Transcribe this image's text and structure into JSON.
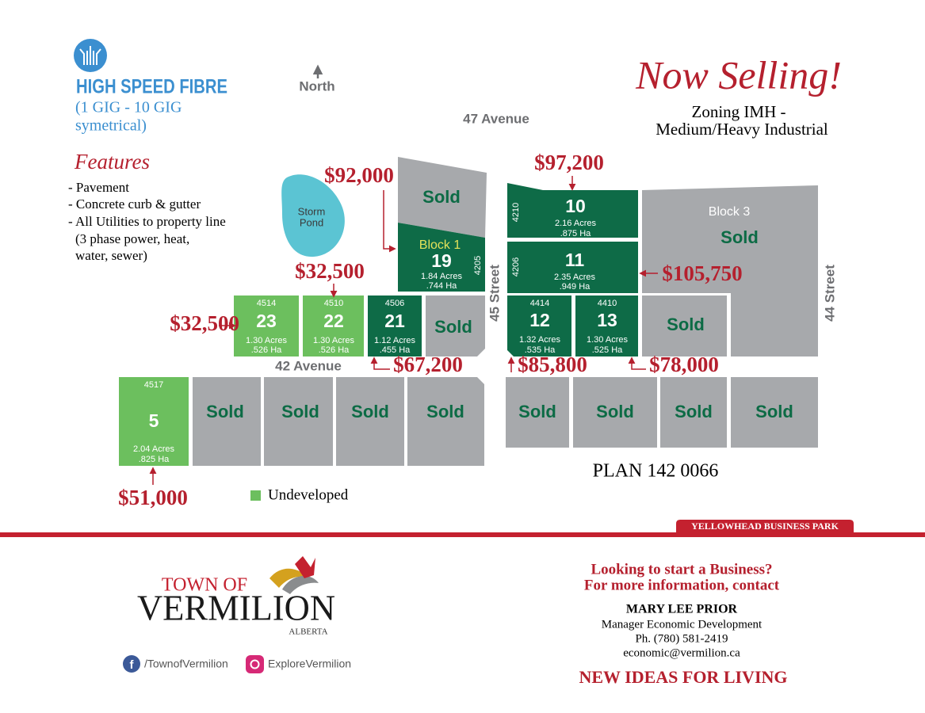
{
  "header": {
    "fibre_title": "HIGH SPEED FIBRE",
    "fibre_lines": [
      "(1 GIG - 10 GIG",
      "symetrical)"
    ],
    "features_title": "Features",
    "features": [
      "- Pavement",
      "- Concrete curb & gutter",
      "- All Utilities to property line",
      "(3 phase power, heat,",
      "water, sewer)"
    ],
    "north": "North",
    "now_selling": "Now Selling!",
    "zoning": [
      "Zoning IMH -",
      "Medium/Heavy Industrial"
    ]
  },
  "map": {
    "streets": [
      "47 Avenue",
      "42 Avenue",
      "45 Street",
      "44 Street"
    ],
    "storm_pond": [
      "Storm",
      "Pond"
    ],
    "block_labels": [
      "Block 1",
      "Block 3"
    ],
    "lots": [
      {
        "number": "23",
        "address": "4514",
        "acres": "1.30 Acres",
        "hectares": ".526 Ha",
        "price": "$32,500",
        "undeveloped": true
      },
      {
        "number": "22",
        "address": "4510",
        "acres": "1.30 Acres",
        "hectares": ".526 Ha",
        "price": "$32,500",
        "undeveloped": true
      },
      {
        "number": "21",
        "address": "4506",
        "acres": "1.12 Acres",
        "hectares": ".455 Ha",
        "price": "$67,200",
        "undeveloped": false
      },
      {
        "number": "19",
        "address": "4205",
        "acres": "1.84 Acres",
        "hectares": ".744 Ha",
        "price": "$92,000",
        "undeveloped": false
      },
      {
        "number": "10",
        "address": "4210",
        "acres": "2.16 Acres",
        "hectares": ".875 Ha",
        "price": "$97,200",
        "undeveloped": false
      },
      {
        "number": "11",
        "address": "4206",
        "acres": "2.35 Acres",
        "hectares": ".949 Ha",
        "price": "$105,750",
        "undeveloped": false
      },
      {
        "number": "12",
        "address": "4414",
        "acres": "1.32 Acres",
        "hectares": ".535 Ha",
        "price": "$85,800",
        "undeveloped": false
      },
      {
        "number": "13",
        "address": "4410",
        "acres": "1.30 Acres",
        "hectares": ".525 Ha",
        "price": "$78,000",
        "undeveloped": false
      },
      {
        "number": "5",
        "address": "4517",
        "acres": "2.04 Acres",
        "hectares": ".825 Ha",
        "price": "$51,000",
        "undeveloped": true
      }
    ],
    "sold": [
      "Sold",
      "Sold",
      "Sold",
      "Sold",
      "Sold",
      "Sold",
      "Sold",
      "Sold",
      "Sold",
      "Sold",
      "Sold",
      "Sold"
    ],
    "plan": "PLAN 142 0066",
    "legend": "Undeveloped"
  },
  "banner": "YELLOWHEAD BUSINESS PARK",
  "footer": {
    "town_of": "TOWN OF",
    "vermilion": "VERMILION",
    "alberta": "ALBERTA",
    "facebook": "/TownofVermilion",
    "instagram": "ExploreVermilion",
    "contact_lines": [
      "Looking to start a Business?",
      "For more information, contact"
    ],
    "name": "MARY LEE PRIOR",
    "role": "Manager Economic Development",
    "phone": "Ph. (780) 581-2419",
    "email": "economic@vermilion.ca",
    "slogan": "NEW IDEAS FOR LIVING"
  }
}
